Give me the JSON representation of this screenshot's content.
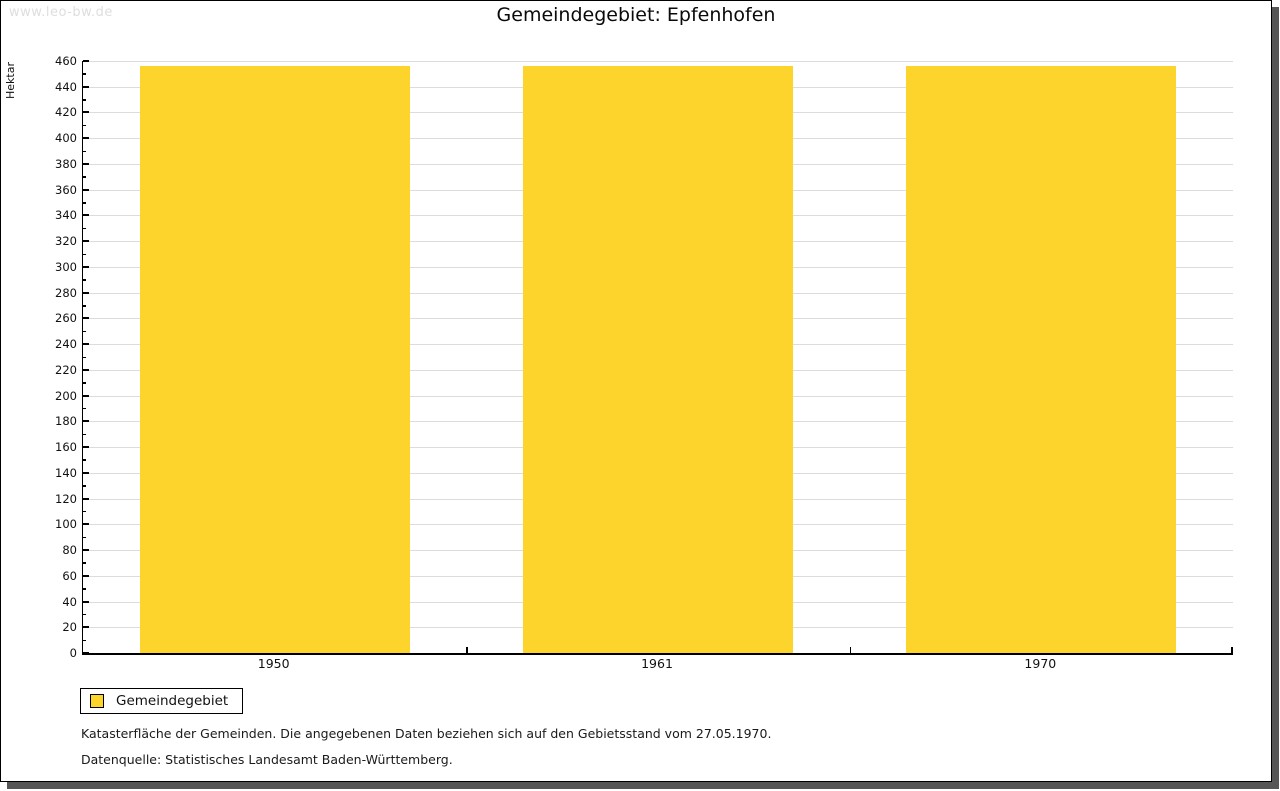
{
  "page": {
    "watermark": "www.leo-bw.de",
    "title": "Gemeindegebiet: Epfenhofen"
  },
  "chart_data": {
    "type": "bar",
    "title": "Gemeindegebiet: Epfenhofen",
    "ylabel": "Hektar",
    "xlabel": "",
    "categories": [
      "1950",
      "1961",
      "1970"
    ],
    "series": [
      {
        "name": "Gemeindegebiet",
        "values": [
          456,
          456,
          456
        ]
      }
    ],
    "ylim": [
      0,
      460
    ],
    "ytick_step": 20,
    "ytick_minor_step": 10,
    "grid": true,
    "bar_color": "#FCD42B",
    "legend_position": "bottom-left"
  },
  "legend": {
    "label": "Gemeindegebiet",
    "swatch_color": "#FCD42B"
  },
  "footnotes": {
    "line1": "Katasterfläche der Gemeinden. Die angegebenen Daten beziehen sich auf den Gebietsstand vom 27.05.1970.",
    "line2": "Datenquelle: Statistisches Landesamt Baden-Württemberg."
  }
}
